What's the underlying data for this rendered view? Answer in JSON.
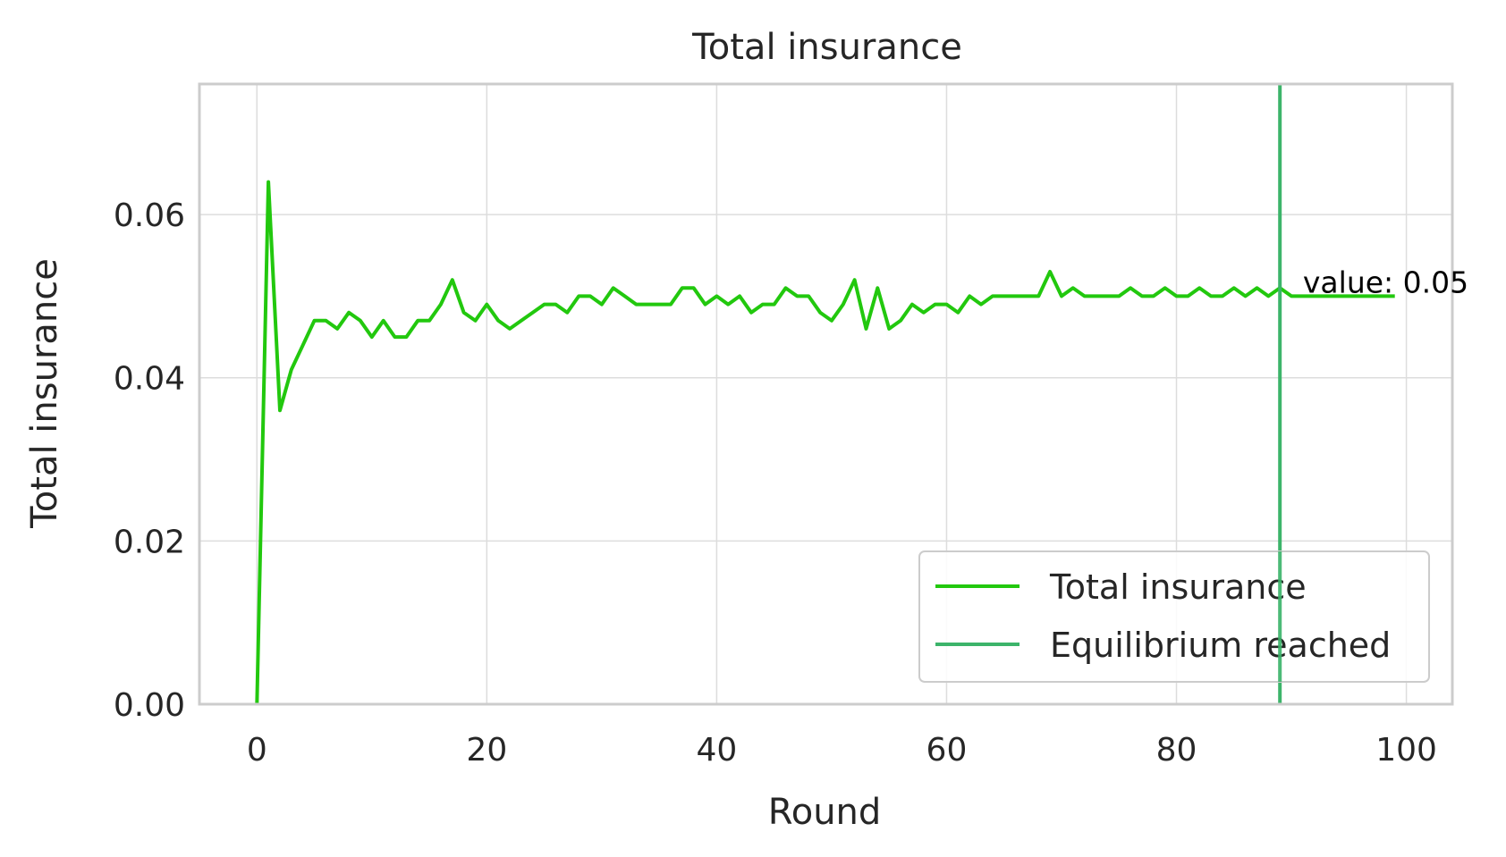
{
  "chart_data": {
    "type": "line",
    "title": "Total insurance",
    "xlabel": "Round",
    "ylabel": "Total insurance",
    "xlim": [
      -5,
      104
    ],
    "ylim": [
      0,
      0.076
    ],
    "xticks": [
      0,
      20,
      40,
      60,
      80,
      100
    ],
    "xtick_labels": [
      "0",
      "20",
      "40",
      "60",
      "80",
      "100"
    ],
    "yticks": [
      0,
      0.02,
      0.04,
      0.06
    ],
    "ytick_labels": [
      "0.00",
      "0.02",
      "0.04",
      "0.06"
    ],
    "grid": true,
    "legend_position": "lower-right",
    "series": [
      {
        "name": "Total insurance",
        "color": "#22c80e",
        "x": [
          0,
          1,
          2,
          3,
          4,
          5,
          6,
          7,
          8,
          9,
          10,
          11,
          12,
          13,
          14,
          15,
          16,
          17,
          18,
          19,
          20,
          21,
          22,
          23,
          24,
          25,
          26,
          27,
          28,
          29,
          30,
          31,
          32,
          33,
          34,
          35,
          36,
          37,
          38,
          39,
          40,
          41,
          42,
          43,
          44,
          45,
          46,
          47,
          48,
          49,
          50,
          51,
          52,
          53,
          54,
          55,
          56,
          57,
          58,
          59,
          60,
          61,
          62,
          63,
          64,
          65,
          66,
          67,
          68,
          69,
          70,
          71,
          72,
          73,
          74,
          75,
          76,
          77,
          78,
          79,
          80,
          81,
          82,
          83,
          84,
          85,
          86,
          87,
          88,
          89,
          90,
          91,
          92,
          93,
          94,
          95,
          96,
          97,
          98,
          99
        ],
        "y": [
          0.0,
          0.064,
          0.036,
          0.041,
          0.044,
          0.047,
          0.047,
          0.046,
          0.048,
          0.047,
          0.045,
          0.047,
          0.045,
          0.045,
          0.047,
          0.047,
          0.049,
          0.052,
          0.048,
          0.047,
          0.049,
          0.047,
          0.046,
          0.047,
          0.048,
          0.049,
          0.049,
          0.048,
          0.05,
          0.05,
          0.049,
          0.051,
          0.05,
          0.049,
          0.049,
          0.049,
          0.049,
          0.051,
          0.051,
          0.049,
          0.05,
          0.049,
          0.05,
          0.048,
          0.049,
          0.049,
          0.051,
          0.05,
          0.05,
          0.048,
          0.047,
          0.049,
          0.052,
          0.046,
          0.051,
          0.046,
          0.047,
          0.049,
          0.048,
          0.049,
          0.049,
          0.048,
          0.05,
          0.049,
          0.05,
          0.05,
          0.05,
          0.05,
          0.05,
          0.053,
          0.05,
          0.051,
          0.05,
          0.05,
          0.05,
          0.05,
          0.051,
          0.05,
          0.05,
          0.051,
          0.05,
          0.05,
          0.051,
          0.05,
          0.05,
          0.051,
          0.05,
          0.051,
          0.05,
          0.051,
          0.05,
          0.05,
          0.05,
          0.05,
          0.05,
          0.05,
          0.05,
          0.05,
          0.05,
          0.05
        ]
      }
    ],
    "vline": {
      "name": "Equilibrium reached",
      "x": 89,
      "color": "#3cb46a"
    },
    "annotation": {
      "text": "value: 0.05",
      "x": 91,
      "y": 0.0515
    }
  }
}
